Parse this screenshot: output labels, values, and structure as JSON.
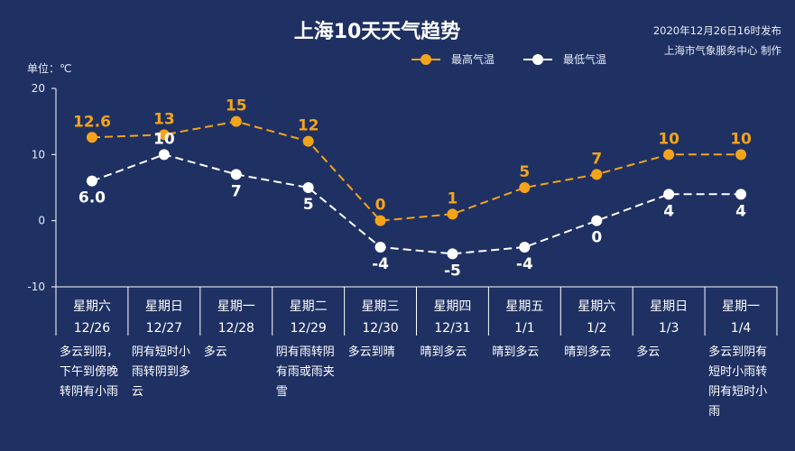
{
  "publish_info": {
    "time": "2020年12月26日16时发布",
    "org": "上海市气象服务中心 制作"
  },
  "colors": {
    "background": "#1f3163",
    "high": "#f4a41a",
    "low": "#ffffff",
    "axis": "#ffffff"
  },
  "chart_data": {
    "type": "line",
    "title": "上海10天天气趋势",
    "unit_label": "单位：℃",
    "ylim": [
      -10,
      20
    ],
    "yticks": [
      20,
      10,
      0,
      -10
    ],
    "legend_position": "top-right",
    "days": [
      {
        "dow": "星期六",
        "date": "12/26",
        "weather": [
          "多云到阴，",
          "下午到傍晚",
          "转阴有小雨"
        ]
      },
      {
        "dow": "星期日",
        "date": "12/27",
        "weather": [
          "阴有短时小",
          "雨转阴到多",
          "云"
        ]
      },
      {
        "dow": "星期一",
        "date": "12/28",
        "weather": [
          "多云"
        ]
      },
      {
        "dow": "星期二",
        "date": "12/29",
        "weather": [
          "阴有雨转阴",
          "有雨或雨夹",
          "雪"
        ]
      },
      {
        "dow": "星期三",
        "date": "12/30",
        "weather": [
          "多云到晴"
        ]
      },
      {
        "dow": "星期四",
        "date": "12/31",
        "weather": [
          "晴到多云"
        ]
      },
      {
        "dow": "星期五",
        "date": "1/1",
        "weather": [
          "晴到多云"
        ]
      },
      {
        "dow": "星期六",
        "date": "1/2",
        "weather": [
          "晴到多云"
        ]
      },
      {
        "dow": "星期日",
        "date": "1/3",
        "weather": [
          "多云"
        ]
      },
      {
        "dow": "星期一",
        "date": "1/4",
        "weather": [
          "多云到阴有",
          "短时小雨转",
          "阴有短时小",
          "雨"
        ]
      }
    ],
    "series": [
      {
        "name": "最高气温",
        "values": [
          12.6,
          13,
          15,
          12,
          0,
          1,
          5,
          7,
          10,
          10
        ],
        "labels": [
          "12.6",
          "13",
          "15",
          "12",
          "0",
          "1",
          "5",
          "7",
          "10",
          "10"
        ]
      },
      {
        "name": "最低气温",
        "values": [
          6.0,
          10,
          7,
          5,
          -4,
          -5,
          -4,
          0,
          4,
          4
        ],
        "labels": [
          "6.0",
          "10",
          "7",
          "5",
          "-4",
          "-5",
          "-4",
          "0",
          "4",
          "4"
        ]
      }
    ]
  }
}
